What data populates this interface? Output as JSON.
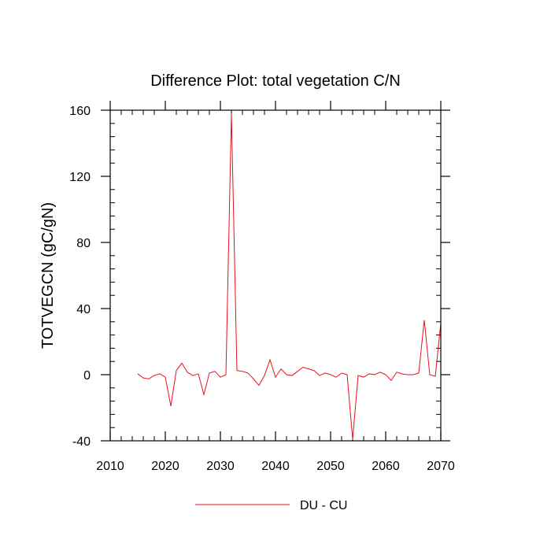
{
  "chart_data": {
    "type": "line",
    "title": "Difference Plot: total vegetation C/N",
    "xlabel": "",
    "ylabel": "TOTVEGCN  (gC/gN)",
    "xlim": [
      2010,
      2070
    ],
    "ylim": [
      -40,
      160
    ],
    "x_ticks": [
      2010,
      2020,
      2030,
      2040,
      2050,
      2060,
      2070
    ],
    "y_ticks": [
      -40,
      0,
      40,
      80,
      120,
      160
    ],
    "grid": false,
    "legend_position": "bottom-center",
    "series": [
      {
        "name": "DU - CU",
        "color": "#e8101c",
        "x": [
          2015,
          2016,
          2017,
          2018,
          2019,
          2020,
          2021,
          2022,
          2023,
          2024,
          2025,
          2026,
          2027,
          2028,
          2029,
          2030,
          2031,
          2032,
          2033,
          2034,
          2035,
          2036,
          2037,
          2038,
          2039,
          2040,
          2041,
          2042,
          2043,
          2044,
          2045,
          2046,
          2047,
          2048,
          2049,
          2050,
          2051,
          2052,
          2053,
          2054,
          2055,
          2056,
          2057,
          2058,
          2059,
          2060,
          2061,
          2062,
          2063,
          2064,
          2065,
          2066,
          2067,
          2068,
          2069,
          2070
        ],
        "values": [
          0.5,
          -2,
          -2.5,
          -0.5,
          0.5,
          -1.5,
          -19,
          2.5,
          7,
          1.5,
          -0.5,
          0.5,
          -12,
          1,
          2,
          -1.5,
          0,
          158,
          2.5,
          2,
          1,
          -2.5,
          -6.5,
          -0.5,
          9,
          -1.5,
          3.5,
          0,
          -0.5,
          2,
          4.5,
          3.5,
          2.5,
          -0.5,
          1,
          0,
          -1.5,
          1,
          0,
          -39,
          -0.5,
          -1.5,
          0.5,
          0,
          1.5,
          0,
          -3.5,
          1.5,
          0.5,
          0,
          0,
          1,
          33,
          0,
          -1,
          31
        ]
      }
    ]
  }
}
